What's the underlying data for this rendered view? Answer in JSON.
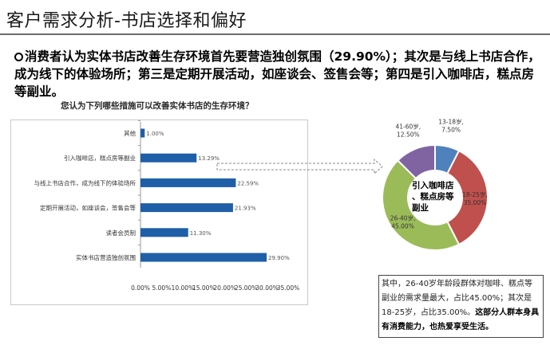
{
  "header": {
    "title": "客户需求分析-书店选择和偏好"
  },
  "summary": {
    "text": "消费者认为实体书店改善生存环境首先要营造独创氛围（29.90%）；其次是与线上书店合作，成为线下的体验场所；第三是定期开展活动，如座谈会、签售会等；第四是引入咖啡店，糕点房等副业。"
  },
  "question": "您认为下列哪些措施可以改善实体书店的生存环境？",
  "chart_data": [
    {
      "type": "bar",
      "orientation": "horizontal",
      "categories": [
        "其他",
        "引入咖啡店，糕点房等副业",
        "与线上书店合作，成为线下的体验场所",
        "定期开展活动，如座谈会，签售会等",
        "读者会员制",
        "实体书店营造独创氛围"
      ],
      "values": [
        1.0,
        13.29,
        22.59,
        21.93,
        11.3,
        29.9
      ],
      "value_labels": [
        "1.00%",
        "13.29%",
        "22.59%",
        "21.93%",
        "11.30%",
        "29.90%"
      ],
      "xlim": [
        0,
        35
      ],
      "xticks": [
        "0.00%",
        "5.00%",
        "10.00%",
        "15.00%",
        "20.00%",
        "25.00%",
        "30.00%",
        "35.00%"
      ],
      "color": "#1f5fa8",
      "grid": false
    },
    {
      "type": "pie",
      "style": "donut",
      "center_label": "引入咖啡店、糕点房等副业",
      "slices": [
        {
          "label": "13-18岁",
          "value": 7.5,
          "value_label": "7.50%",
          "color": "#4f81bd"
        },
        {
          "label": "18-25岁",
          "value": 35.0,
          "value_label": "35.00%",
          "color": "#c0504d"
        },
        {
          "label": "26-40岁",
          "value": 45.0,
          "value_label": "45.00%",
          "color": "#9bbb59"
        },
        {
          "label": "41-60岁",
          "value": 12.5,
          "value_label": "12.50%",
          "color": "#8064a2"
        }
      ]
    }
  ],
  "note": {
    "plain": "其中，26-40岁年龄段群体对咖啡、糕点等副业的需求量最大，占比45.00%；其次是18-25岁，占比35.00%。",
    "bold": "这部分人群本身具有消费能力，也热爱享受生活。"
  }
}
